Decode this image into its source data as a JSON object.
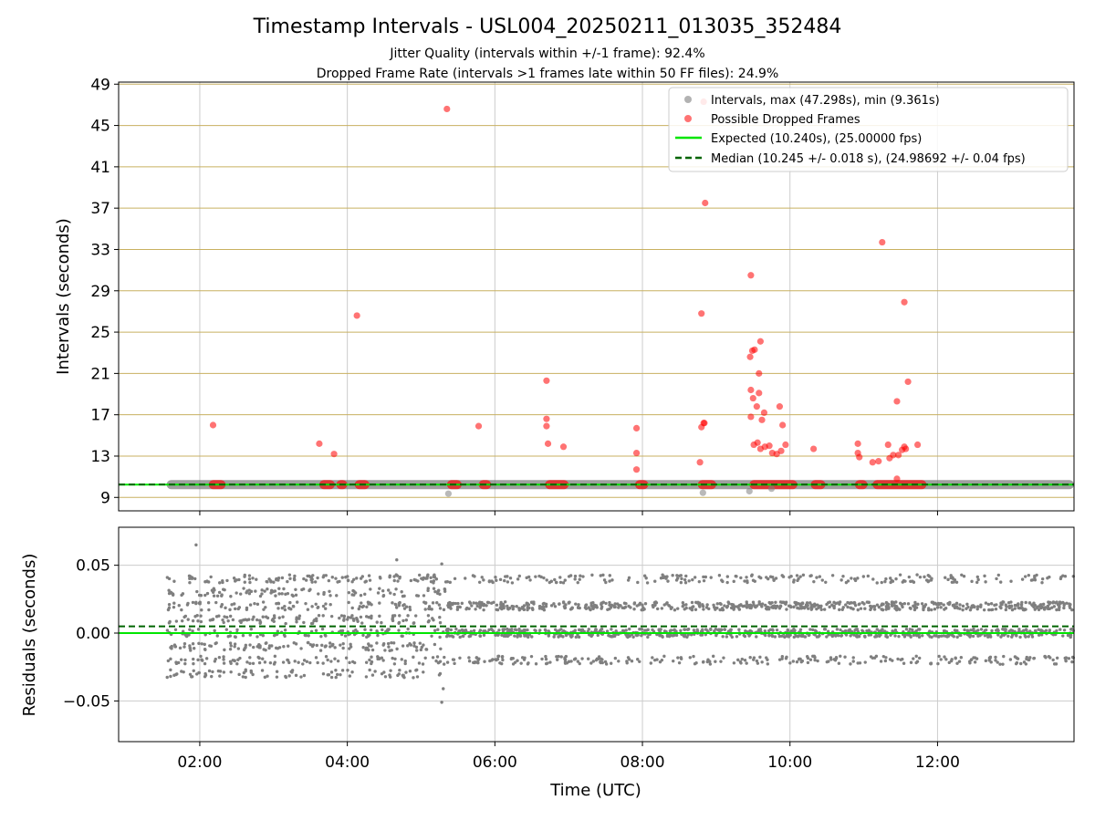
{
  "chart_data": [
    {
      "type": "scatter",
      "title": "Timestamp Intervals - USL004_20250211_013035_352484",
      "subtitle_lines": [
        "Jitter Quality (intervals within +/-1 frame): 92.4%",
        "Dropped Frame Rate (intervals >1 frames late within 50 FF files): 24.9%"
      ],
      "xlabel": "",
      "ylabel": "Intervals (seconds)",
      "x_unit": "hours UTC",
      "xlim": [
        0.9,
        13.85
      ],
      "ylim": [
        7.7,
        49.2
      ],
      "yticks": [
        9,
        13,
        17,
        21,
        25,
        29,
        33,
        37,
        41,
        45,
        49
      ],
      "xticks": [
        2,
        4,
        6,
        8,
        10,
        12
      ],
      "xtick_labels": [
        "02:00",
        "04:00",
        "06:00",
        "08:00",
        "10:00",
        "12:00"
      ],
      "grid": true,
      "legend_position": "top-right",
      "colors": {
        "intervals": "#7f7f7f",
        "dropped": "#ff0000",
        "expected": "#00e600",
        "median": "#006400",
        "hgrid": "#c8b060",
        "vgrid": "#cccccc"
      },
      "series": [
        {
          "name": "Intervals, max (47.298s), min (9.361s)",
          "kind": "band",
          "x_range": [
            1.55,
            13.85
          ],
          "y_center": 10.24,
          "y_halfwidth": 0.35
        },
        {
          "name": "Possible Dropped Frames",
          "kind": "points",
          "points": [
            [
              2.18,
              16.0
            ],
            [
              5.35,
              46.6
            ],
            [
              4.13,
              26.6
            ],
            [
              3.62,
              14.2
            ],
            [
              3.82,
              13.2
            ],
            [
              5.78,
              15.9
            ],
            [
              6.7,
              20.3
            ],
            [
              6.7,
              16.6
            ],
            [
              6.7,
              15.9
            ],
            [
              6.72,
              14.2
            ],
            [
              6.93,
              13.9
            ],
            [
              7.92,
              15.7
            ],
            [
              7.92,
              13.3
            ],
            [
              7.92,
              11.7
            ],
            [
              8.8,
              26.8
            ],
            [
              8.85,
              37.5
            ],
            [
              8.8,
              15.8
            ],
            [
              8.83,
              16.2
            ],
            [
              8.84,
              16.2
            ],
            [
              8.78,
              12.4
            ],
            [
              8.83,
              47.3
            ],
            [
              9.47,
              30.5
            ],
            [
              9.46,
              22.6
            ],
            [
              9.49,
              23.2
            ],
            [
              9.52,
              23.3
            ],
            [
              9.6,
              24.1
            ],
            [
              9.47,
              19.4
            ],
            [
              9.5,
              18.6
            ],
            [
              9.58,
              21.0
            ],
            [
              9.58,
              19.1
            ],
            [
              9.55,
              17.8
            ],
            [
              9.62,
              16.5
            ],
            [
              9.65,
              17.2
            ],
            [
              9.47,
              16.8
            ],
            [
              9.51,
              14.1
            ],
            [
              9.56,
              14.3
            ],
            [
              9.6,
              13.7
            ],
            [
              9.66,
              13.9
            ],
            [
              9.72,
              14.0
            ],
            [
              9.76,
              13.3
            ],
            [
              9.82,
              13.2
            ],
            [
              9.86,
              17.8
            ],
            [
              9.88,
              13.5
            ],
            [
              9.9,
              16.0
            ],
            [
              9.94,
              14.1
            ],
            [
              10.32,
              13.7
            ],
            [
              10.92,
              14.2
            ],
            [
              10.92,
              13.3
            ],
            [
              10.94,
              12.9
            ],
            [
              11.12,
              12.4
            ],
            [
              11.2,
              12.5
            ],
            [
              11.25,
              33.7
            ],
            [
              11.33,
              14.1
            ],
            [
              11.35,
              12.8
            ],
            [
              11.4,
              13.1
            ],
            [
              11.45,
              18.3
            ],
            [
              11.47,
              13.1
            ],
            [
              11.52,
              13.6
            ],
            [
              11.55,
              13.9
            ],
            [
              11.57,
              13.7
            ],
            [
              11.6,
              20.2
            ],
            [
              11.55,
              27.9
            ],
            [
              11.73,
              14.1
            ],
            [
              11.45,
              10.8
            ]
          ],
          "dense_clusters": [
            [
              2.12,
              2.35
            ],
            [
              3.62,
              3.83
            ],
            [
              3.85,
              4.0
            ],
            [
              4.1,
              4.3
            ],
            [
              5.35,
              5.55
            ],
            [
              5.78,
              5.95
            ],
            [
              6.68,
              7.0
            ],
            [
              7.9,
              8.08
            ],
            [
              8.75,
              9.0
            ],
            [
              9.45,
              10.1
            ],
            [
              10.28,
              10.48
            ],
            [
              10.88,
              11.05
            ],
            [
              11.12,
              11.85
            ]
          ]
        },
        {
          "name": "gray outliers",
          "kind": "points_gray",
          "points": [
            [
              5.37,
              9.36
            ],
            [
              8.82,
              9.45
            ],
            [
              9.45,
              9.6
            ],
            [
              9.75,
              9.85
            ]
          ]
        },
        {
          "name": "Expected (10.240s), (25.00000 fps)",
          "kind": "hline",
          "y": 10.24
        },
        {
          "name": "Median (10.245 +/- 0.018 s), (24.98692 +/- 0.04 fps)",
          "kind": "hline_dashed",
          "y": 10.245
        }
      ]
    },
    {
      "type": "scatter",
      "title": "",
      "xlabel": "Time (UTC)",
      "ylabel": "Residuals (seconds)",
      "x_unit": "hours UTC",
      "xlim": [
        0.9,
        13.85
      ],
      "ylim": [
        -0.08,
        0.078
      ],
      "yticks": [
        0.05,
        0.0,
        -0.05
      ],
      "ytick_labels": [
        "0.05",
        "0.00",
        "−0.05"
      ],
      "xticks": [
        2,
        4,
        6,
        8,
        10,
        12
      ],
      "xtick_labels": [
        "02:00",
        "04:00",
        "06:00",
        "08:00",
        "10:00",
        "12:00"
      ],
      "grid": true,
      "series": [
        {
          "name": "residuals",
          "kind": "residual_cloud",
          "x_range": [
            1.55,
            13.85
          ],
          "phase_change_x": 5.33,
          "early_levels": [
            -0.03,
            -0.02,
            -0.01,
            0.0,
            0.01,
            0.02,
            0.03,
            0.04
          ],
          "late_levels": [
            -0.02,
            0.0,
            0.02,
            0.04
          ],
          "outliers": [
            [
              1.95,
              0.065
            ],
            [
              4.67,
              0.054
            ],
            [
              5.28,
              0.051
            ],
            [
              5.28,
              -0.051
            ],
            [
              5.3,
              -0.041
            ]
          ]
        },
        {
          "name": "expected",
          "kind": "hline",
          "y": 0.0
        },
        {
          "name": "median",
          "kind": "hline_dashed",
          "y": 0.005
        }
      ]
    }
  ]
}
